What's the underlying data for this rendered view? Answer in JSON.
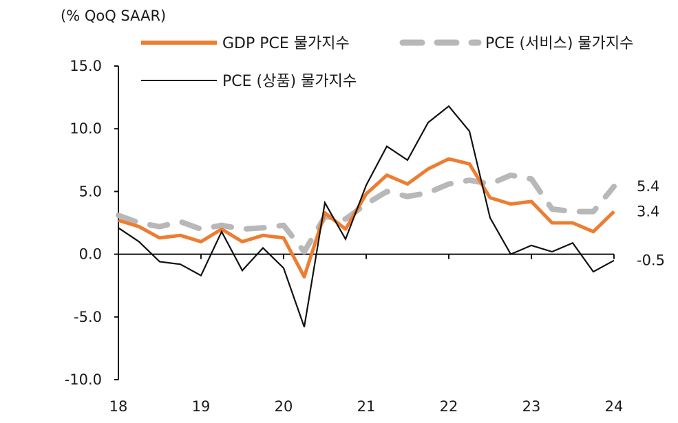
{
  "chart_data": {
    "type": "line",
    "unit_label": "(% QoQ SAAR)",
    "ylim": [
      -10,
      15
    ],
    "yticks": [
      "15.0",
      "10.0",
      "5.0",
      "0.0",
      "-5.0",
      "-10.0"
    ],
    "ytick_values": [
      15,
      10,
      5,
      0,
      -5,
      -10
    ],
    "xlim": [
      0,
      24
    ],
    "xticks": [
      "18",
      "19",
      "20",
      "21",
      "22",
      "23",
      "24"
    ],
    "xtick_values": [
      0,
      4,
      8,
      12,
      16,
      20,
      24
    ],
    "series": [
      {
        "name": "GDP PCE 물가지수",
        "style": "solid-thick",
        "color": "#ED7D31",
        "values": [
          2.7,
          2.2,
          1.3,
          1.5,
          1.0,
          2.0,
          1.0,
          1.5,
          1.3,
          -1.8,
          3.3,
          2.0,
          4.8,
          6.3,
          5.6,
          6.8,
          7.6,
          7.2,
          4.5,
          4.0,
          4.2,
          2.5,
          2.5,
          1.8,
          3.4
        ]
      },
      {
        "name": "PCE (서비스) 물가지수",
        "style": "dashed",
        "color": "#B8B8B8",
        "values": [
          3.1,
          2.5,
          2.2,
          2.6,
          2.0,
          2.3,
          2.0,
          2.1,
          2.3,
          0.2,
          3.0,
          2.8,
          4.0,
          5.0,
          4.6,
          4.9,
          5.6,
          5.9,
          5.6,
          6.3,
          6.0,
          3.6,
          3.4,
          3.4,
          5.4
        ]
      },
      {
        "name": "PCE (상품) 물가지수",
        "style": "solid-thin",
        "color": "#111111",
        "values": [
          2.1,
          1.0,
          -0.6,
          -0.8,
          -1.7,
          1.8,
          -1.3,
          0.5,
          -1.1,
          -5.8,
          4.1,
          1.2,
          5.5,
          8.6,
          7.5,
          10.5,
          11.8,
          9.8,
          2.9,
          0.0,
          0.7,
          0.2,
          0.9,
          -1.4,
          -0.5
        ]
      }
    ],
    "end_labels": [
      "5.4",
      "3.4",
      "-0.5"
    ]
  }
}
